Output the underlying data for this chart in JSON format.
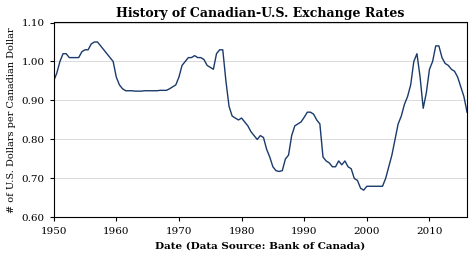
{
  "title": "History of Canadian-U.S. Exchange Rates",
  "xlabel": "Date (Data Source: Bank of Canada)",
  "ylabel": "# of U.S. Dollars per Canadian Dollar",
  "xlim": [
    1950,
    2016
  ],
  "ylim": [
    0.6,
    1.1
  ],
  "yticks": [
    0.6,
    0.7,
    0.8,
    0.9,
    1.0,
    1.1
  ],
  "xticks": [
    1950,
    1960,
    1970,
    1980,
    1990,
    2000,
    2010
  ],
  "line_color": "#1a3a6b",
  "line_width": 1.0,
  "background_color": "#ffffff",
  "grid_color": "#cccccc",
  "years": [
    1950.0,
    1950.5,
    1951.0,
    1951.5,
    1952.0,
    1952.5,
    1953.0,
    1953.5,
    1954.0,
    1954.5,
    1955.0,
    1955.5,
    1956.0,
    1956.5,
    1957.0,
    1957.5,
    1958.0,
    1958.5,
    1959.0,
    1959.5,
    1960.0,
    1960.5,
    1961.0,
    1961.5,
    1962.0,
    1962.5,
    1963.0,
    1963.5,
    1964.0,
    1964.5,
    1965.0,
    1965.5,
    1966.0,
    1966.5,
    1967.0,
    1967.5,
    1968.0,
    1968.5,
    1969.0,
    1969.5,
    1970.0,
    1970.5,
    1971.0,
    1971.5,
    1972.0,
    1972.5,
    1973.0,
    1973.5,
    1974.0,
    1974.5,
    1975.0,
    1975.5,
    1976.0,
    1976.5,
    1977.0,
    1977.5,
    1978.0,
    1978.5,
    1979.0,
    1979.5,
    1980.0,
    1980.5,
    1981.0,
    1981.5,
    1982.0,
    1982.5,
    1983.0,
    1983.5,
    1984.0,
    1984.5,
    1985.0,
    1985.5,
    1986.0,
    1986.5,
    1987.0,
    1987.5,
    1988.0,
    1988.5,
    1989.0,
    1989.5,
    1990.0,
    1990.5,
    1991.0,
    1991.5,
    1992.0,
    1992.5,
    1993.0,
    1993.5,
    1994.0,
    1994.5,
    1995.0,
    1995.5,
    1996.0,
    1996.5,
    1997.0,
    1997.5,
    1998.0,
    1998.5,
    1999.0,
    1999.5,
    2000.0,
    2000.5,
    2001.0,
    2001.5,
    2002.0,
    2002.5,
    2003.0,
    2003.5,
    2004.0,
    2004.5,
    2005.0,
    2005.5,
    2006.0,
    2006.5,
    2007.0,
    2007.5,
    2008.0,
    2008.5,
    2009.0,
    2009.5,
    2010.0,
    2010.5,
    2011.0,
    2011.5,
    2012.0,
    2012.5,
    2013.0,
    2013.5,
    2014.0,
    2014.5,
    2015.0,
    2015.5,
    2016.0
  ],
  "rates": [
    0.95,
    0.97,
    1.0,
    1.02,
    1.02,
    1.01,
    1.01,
    1.01,
    1.01,
    1.025,
    1.03,
    1.03,
    1.045,
    1.05,
    1.05,
    1.04,
    1.03,
    1.02,
    1.01,
    1.0,
    0.96,
    0.94,
    0.93,
    0.925,
    0.925,
    0.925,
    0.924,
    0.924,
    0.924,
    0.925,
    0.925,
    0.925,
    0.925,
    0.925,
    0.926,
    0.926,
    0.926,
    0.93,
    0.935,
    0.94,
    0.96,
    0.99,
    1.0,
    1.01,
    1.01,
    1.015,
    1.01,
    1.01,
    1.005,
    0.99,
    0.985,
    0.98,
    1.02,
    1.03,
    1.03,
    0.95,
    0.885,
    0.86,
    0.855,
    0.85,
    0.855,
    0.845,
    0.835,
    0.82,
    0.81,
    0.8,
    0.81,
    0.805,
    0.775,
    0.755,
    0.73,
    0.72,
    0.718,
    0.72,
    0.75,
    0.76,
    0.81,
    0.835,
    0.84,
    0.845,
    0.857,
    0.87,
    0.87,
    0.865,
    0.85,
    0.84,
    0.755,
    0.745,
    0.74,
    0.73,
    0.73,
    0.745,
    0.735,
    0.745,
    0.73,
    0.725,
    0.7,
    0.695,
    0.675,
    0.67,
    0.68,
    0.68,
    0.68,
    0.68,
    0.68,
    0.68,
    0.7,
    0.73,
    0.76,
    0.8,
    0.84,
    0.86,
    0.89,
    0.91,
    0.94,
    1.0,
    1.02,
    0.96,
    0.88,
    0.92,
    0.98,
    1.0,
    1.04,
    1.04,
    1.01,
    0.995,
    0.99,
    0.98,
    0.975,
    0.96,
    0.935,
    0.91,
    0.87
  ]
}
